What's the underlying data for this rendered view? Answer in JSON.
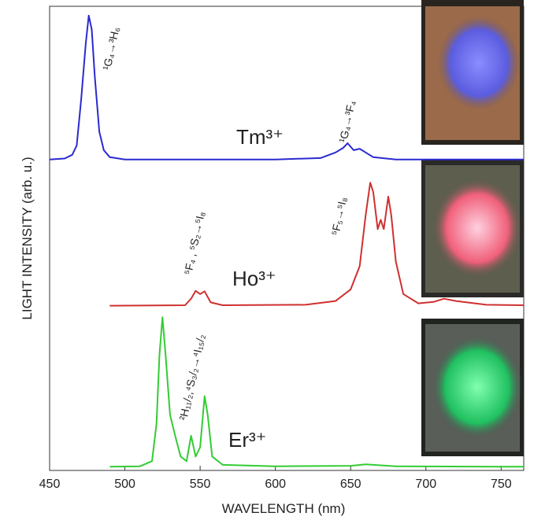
{
  "chart_data": {
    "type": "line",
    "xlabel": "WAVELENGTH (nm)",
    "ylabel": "LIGHT INTENSITY (arb. u.)",
    "xlim": [
      450,
      765
    ],
    "xticks": [
      450,
      500,
      550,
      600,
      650,
      700,
      750
    ],
    "ylim": [
      0,
      100
    ],
    "series": [
      {
        "name": "Tm³⁺",
        "color": "#2a2ad0",
        "x": [
          450,
          460,
          465,
          468,
          471,
          474,
          476,
          478,
          480,
          483,
          486,
          490,
          500,
          550,
          600,
          630,
          640,
          645,
          648,
          652,
          656,
          660,
          665,
          680,
          765
        ],
        "values": [
          67,
          67.2,
          68,
          70,
          80,
          92,
          98,
          95,
          85,
          73,
          69,
          67.5,
          67,
          67,
          67,
          67.3,
          68.5,
          69.5,
          70.5,
          69,
          69.3,
          68.5,
          67.5,
          67,
          67
        ]
      },
      {
        "name": "Ho³⁺",
        "color": "#d03030",
        "x": [
          490,
          540,
          544,
          547,
          550,
          553,
          557,
          565,
          620,
          640,
          650,
          656,
          660,
          663,
          665,
          668,
          670,
          672,
          675,
          677,
          680,
          685,
          695,
          705,
          712,
          720,
          740,
          765
        ],
        "values": [
          35.5,
          35.6,
          37,
          38.7,
          38,
          38.6,
          36.2,
          35.6,
          35.7,
          36.5,
          39,
          44,
          55,
          62,
          60,
          52,
          54,
          52,
          59,
          55,
          45,
          38,
          36,
          36.3,
          37,
          36.5,
          35.7,
          35.6
        ]
      },
      {
        "name": "Er³⁺",
        "color": "#33cc33",
        "x": [
          490,
          510,
          518,
          521,
          523,
          525,
          527,
          530,
          533,
          537,
          541,
          544,
          547,
          550,
          553,
          555,
          558,
          565,
          600,
          650,
          660,
          680,
          765
        ],
        "values": [
          0.8,
          0.9,
          2,
          10,
          25,
          33,
          25,
          12,
          8,
          3,
          2,
          7.5,
          3,
          5,
          16,
          12,
          3,
          1.2,
          0.9,
          1,
          1.3,
          0.9,
          0.8
        ]
      }
    ],
    "annotations": [
      "¹G₄→³H₆",
      "¹G₄→³F₄",
      "⁵F₄ , ⁵S₂→⁵I₈",
      "⁵F₅→⁵I₈",
      "²H₁₁/₂,⁴S₃/₂→⁴I₁₅/₂"
    ]
  }
}
